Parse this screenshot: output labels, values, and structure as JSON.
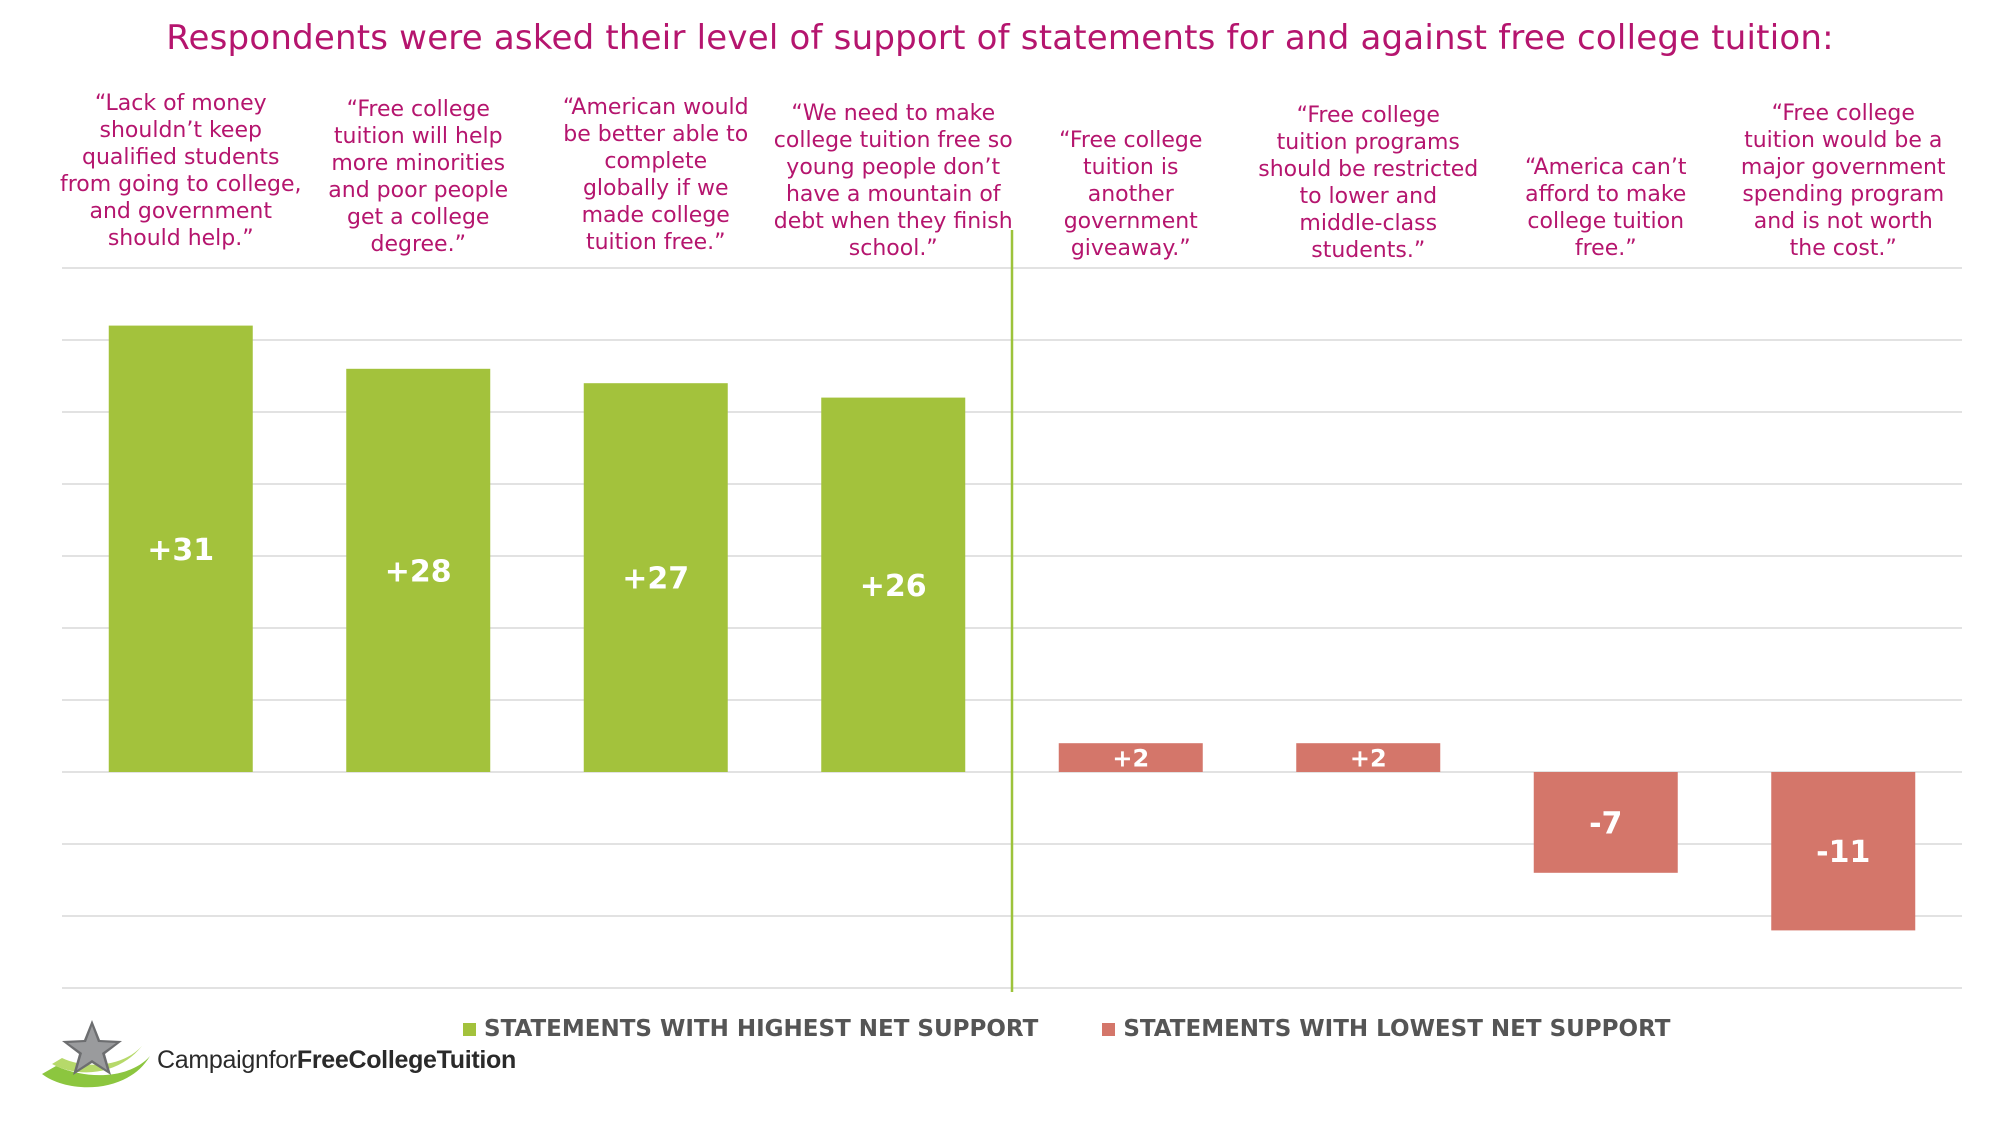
{
  "chart_data": {
    "type": "bar",
    "title": "Respondents were asked their level of support of statements for and against free college tuition:",
    "categories": [
      "“Lack of money\nshouldn’t keep\nqualified students\nfrom going to college,\nand government\nshould help.”",
      "“Free college\ntuition will help\nmore minorities\nand poor people\nget a college\ndegree.”",
      "“American would\nbe better able to\ncomplete\nglobally if we\nmade college\ntuition free.”",
      "“We need to make\ncollege tuition free so\nyoung people don’t\nhave a mountain of\ndebt when they finish\nschool.”",
      "“Free college\ntuition is\nanother\ngovernment\ngiveaway.”",
      "“Free college\ntuition programs\nshould be restricted\nto lower and\nmiddle-class\nstudents.”",
      "“America can’t\nafford to make\ncollege tuition\nfree.”",
      "“Free college\ntuition would be a\nmajor government\nspending program\nand is not worth\nthe cost.”"
    ],
    "values": [
      31,
      28,
      27,
      26,
      2,
      2,
      -7,
      -11
    ],
    "data_labels": [
      "+31",
      "+28",
      "+27",
      "+26",
      "+2",
      "+2",
      "-7",
      "-11"
    ],
    "series_assignment": [
      "high",
      "high",
      "high",
      "high",
      "low",
      "low",
      "low",
      "low"
    ],
    "ylim": [
      -15,
      35
    ],
    "gridline_step": 5,
    "grid": true,
    "legend": [
      {
        "key": "high",
        "label": "STATEMENTS WITH HIGHEST NET SUPPORT",
        "color": "#a3c23c"
      },
      {
        "key": "low",
        "label": "STATEMENTS WITH LOWEST NET SUPPORT",
        "color": "#d4766a"
      }
    ],
    "legend_position": "bottom-center",
    "divider_after_index": 3
  },
  "colors": {
    "title": "#b5156e",
    "high": "#a3c23c",
    "low": "#d4766a",
    "grid": "#d9d9d9",
    "divider": "#9dc33b"
  },
  "logo": {
    "text_light": "Campaign",
    "text_mid": "for",
    "text_bold": "FreeCollegeTuition"
  }
}
